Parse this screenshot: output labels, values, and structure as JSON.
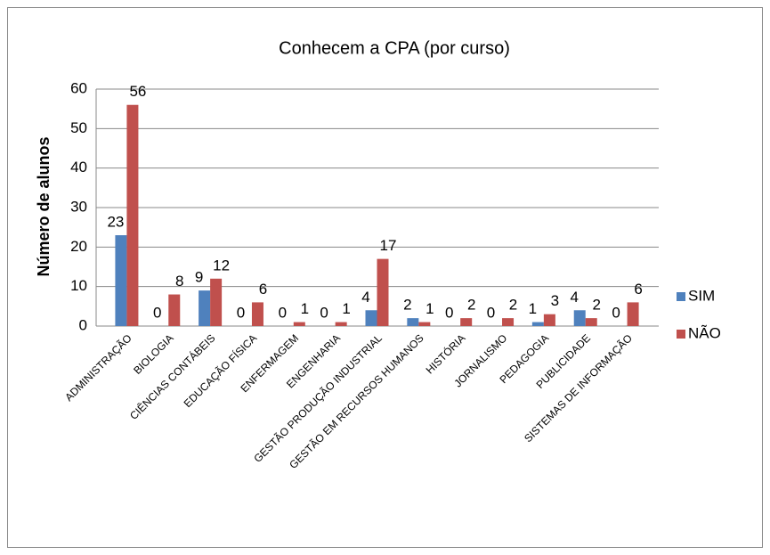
{
  "chart_data": {
    "type": "bar",
    "title": "Conhecem a CPA (por curso)",
    "y_label": "Número de alunos",
    "categories": [
      "ADMINISTRAÇÃO",
      "BIOLOGIA",
      "CIÊNCIAS CONTÁBEIS",
      "EDUCAÇÃO FÍSICA",
      "ENFERMAGEM",
      "ENGENHARIA",
      "GESTÃO PRODUÇÃO INDUSTRIAL",
      "GESTÃO EM RECURSOS HUMANOS",
      "HISTÓRIA",
      "JORNALISMO",
      "PEDAGOGIA",
      "PUBLICIDADE",
      "SISTEMAS DE INFORMAÇÃO"
    ],
    "series": [
      {
        "name": "SIM",
        "color": "#4f81bd",
        "values": [
          23,
          0,
          9,
          0,
          0,
          0,
          4,
          2,
          0,
          0,
          1,
          4,
          0
        ]
      },
      {
        "name": "NÃO",
        "color": "#c0504d",
        "values": [
          56,
          8,
          12,
          6,
          1,
          1,
          17,
          1,
          2,
          2,
          3,
          2,
          6
        ]
      }
    ],
    "ylim": [
      0,
      60
    ],
    "yticks": [
      0,
      10,
      20,
      30,
      40,
      50,
      60
    ],
    "grid": true,
    "legend": "right"
  }
}
